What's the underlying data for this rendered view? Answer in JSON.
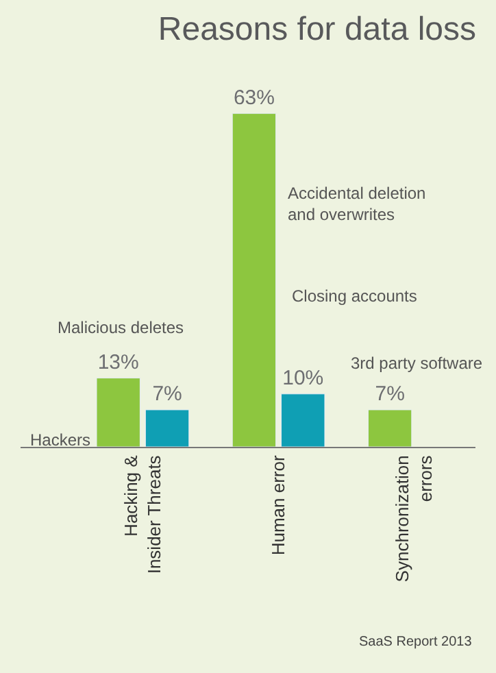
{
  "chart_data": {
    "type": "bar",
    "title": "Reasons for data loss",
    "categories": [
      "Hacking &\nInsider Threats",
      "Human error",
      "Synchronization\nerrors"
    ],
    "series": [
      {
        "color": "#8dc63f",
        "values": [
          13,
          63,
          7
        ],
        "value_labels": [
          "13%",
          "63%",
          "7%"
        ]
      },
      {
        "color": "#0f9fb4",
        "values": [
          7,
          10,
          null
        ],
        "value_labels": [
          "7%",
          "10%",
          null
        ]
      }
    ],
    "tick_labels": "x",
    "grid": false,
    "legend": false,
    "annotations": [
      "Hackers",
      "Malicious deletes",
      "Accidental deletion\nand overwrites",
      "Closing accounts",
      "3rd party software",
      "SaaS Report 2013"
    ]
  }
}
